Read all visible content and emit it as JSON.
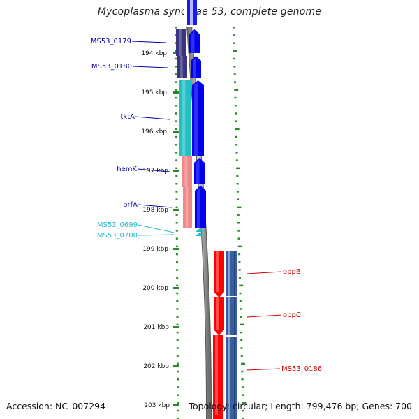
{
  "title": "Mycoplasma synoviae 53, complete genome",
  "footer": {
    "accession": "Accession: NC_007294",
    "summary": "Topology: circular; Length: 799,476 bp; Genes: 700"
  },
  "axis": {
    "unit": "kbp",
    "ticks": [
      "194 kbp",
      "195 kbp",
      "196 kbp",
      "197 kbp",
      "198 kbp",
      "199 kbp",
      "200 kbp",
      "201 kbp",
      "202 kbp",
      "203 kbp"
    ]
  },
  "colors": {
    "tick": "#2a8a2a",
    "backbone": "#9a9a9a",
    "forward_label": "#0000aa",
    "cyan_label": "#22bbcc",
    "reverse_label": "#cc0000",
    "forward_cds": "#0000ee",
    "reverse_cds": "#ff0000"
  },
  "genes": [
    {
      "name": "MS53_0179",
      "strand": "+",
      "color": "#3b3580",
      "label_color": "#0000aa"
    },
    {
      "name": "MS53_0180",
      "strand": "+",
      "color": "#3b3580",
      "label_color": "#0000aa"
    },
    {
      "name": "tktA",
      "strand": "+",
      "color": "#22bfc5",
      "label_color": "#0000aa"
    },
    {
      "name": "hemK",
      "strand": "+",
      "color": "#f0888a",
      "label_color": "#0000aa"
    },
    {
      "name": "prfA",
      "strand": "+",
      "color": "#f0888a",
      "label_color": "#0000aa"
    },
    {
      "name": "MS53_0699",
      "strand": "+",
      "color": "#22bbcc",
      "label_color": "#22bbcc"
    },
    {
      "name": "MS53_0700",
      "strand": "+",
      "color": "#22bbcc",
      "label_color": "#22bbcc"
    },
    {
      "name": "oppB",
      "strand": "-",
      "color": "#3a5fa0",
      "label_color": "#cc0000"
    },
    {
      "name": "oppC",
      "strand": "-",
      "color": "#3a5fa0",
      "label_color": "#cc0000"
    },
    {
      "name": "MS53_0186",
      "strand": "-",
      "color": "#3a5fa0",
      "label_color": "#cc0000"
    }
  ]
}
